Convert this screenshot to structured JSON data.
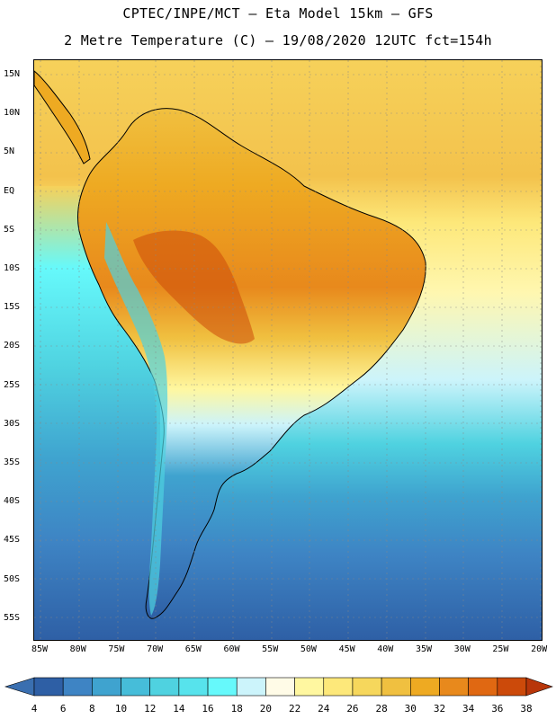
{
  "title_line1": "CPTEC/INPE/MCT –  Eta Model 15km – GFS",
  "title_line2": "2 Metre Temperature (C) – 19/08/2020 12UTC fct=154h",
  "lat_labels": [
    "15N",
    "10N",
    "5N",
    "EQ",
    "5S",
    "10S",
    "15S",
    "20S",
    "25S",
    "30S",
    "35S",
    "40S",
    "45S",
    "50S",
    "55S"
  ],
  "lon_labels": [
    "85W",
    "80W",
    "75W",
    "70W",
    "65W",
    "60W",
    "55W",
    "50W",
    "45W",
    "40W",
    "35W",
    "30W",
    "25W",
    "20W"
  ],
  "colorbar": {
    "labels": [
      "4",
      "6",
      "8",
      "10",
      "12",
      "14",
      "16",
      "18",
      "20",
      "22",
      "24",
      "26",
      "28",
      "30",
      "32",
      "34",
      "36",
      "38"
    ],
    "colors": [
      "#3a6fb0",
      "#2e5fa5",
      "#3e84c4",
      "#3fa3cf",
      "#46bdd9",
      "#4fd2e0",
      "#57e3ec",
      "#66f9fb",
      "#ccf4fb",
      "#fffbe7",
      "#fff7a0",
      "#fde87a",
      "#f6d75c",
      "#f0c040",
      "#eeaa22",
      "#e8891c",
      "#e06812",
      "#cc4a0a",
      "#b8360a"
    ]
  },
  "map": {
    "ocean_north": "#f6d15a",
    "ocean_mid": "#4cd8e4",
    "ocean_south": "#3a6fb0"
  }
}
